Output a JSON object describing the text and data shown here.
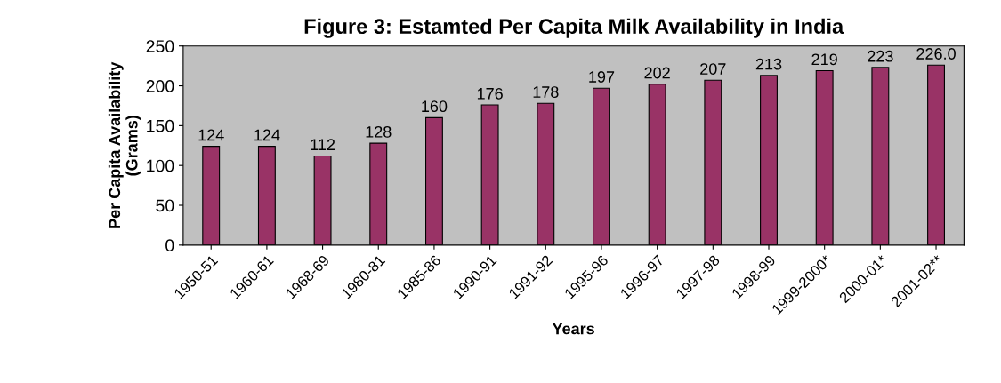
{
  "chart_data": {
    "type": "bar",
    "title": "Figure 3: Estamted Per Capita Milk Availability in India",
    "xlabel": "Years",
    "ylabel": "Per Capita Availability\n(Grams)",
    "categories": [
      "1950-51",
      "1960-61",
      "1968-69",
      "1980-81",
      "1985-86",
      "1990-91",
      "1991-92",
      "1995-96",
      "1996-97",
      "1997-98",
      "1998-99",
      "1999-2000*",
      "2000-01*",
      "2001-02**"
    ],
    "values": [
      124,
      124,
      112,
      128,
      160,
      176,
      178,
      197,
      202,
      207,
      213,
      219,
      223,
      226.0
    ],
    "value_labels": [
      "124",
      "124",
      "112",
      "128",
      "160",
      "176",
      "178",
      "197",
      "202",
      "207",
      "213",
      "219",
      "223",
      "226.0"
    ],
    "color": "#993366",
    "ylim": [
      0,
      250
    ],
    "yticks": [
      0,
      50,
      100,
      150,
      200,
      250
    ],
    "grid": false,
    "legend": false
  }
}
